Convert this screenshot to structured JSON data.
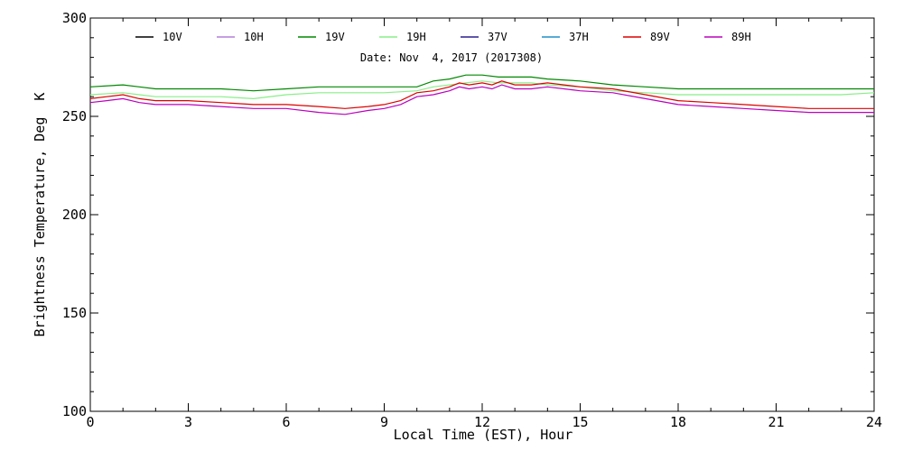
{
  "chart_data": {
    "type": "line",
    "title": "Date: Nov  4, 2017 (2017308)",
    "xlabel": "Local Time (EST), Hour",
    "ylabel": "Brightness Temperature, Deg  K",
    "xlim": [
      0,
      24
    ],
    "ylim": [
      100,
      300
    ],
    "xticks": [
      0,
      3,
      6,
      9,
      12,
      15,
      18,
      21,
      24
    ],
    "yticks": [
      100,
      150,
      200,
      250,
      300
    ],
    "legend_placement": "top",
    "grid": false,
    "series": [
      {
        "name": "10V",
        "color": "#000000",
        "x": [],
        "y": []
      },
      {
        "name": "10H",
        "color": "#b37fd9",
        "x": [],
        "y": []
      },
      {
        "name": "19V",
        "color": "#008800",
        "x": [
          0,
          1,
          1.5,
          2,
          3,
          4,
          5,
          6,
          7,
          8,
          9,
          10,
          10.5,
          11,
          11.5,
          12,
          12.5,
          13,
          13.5,
          14,
          15,
          16,
          17,
          18,
          19,
          20,
          21,
          22,
          23,
          24
        ],
        "y": [
          265,
          266,
          265,
          264,
          264,
          264,
          263,
          264,
          265,
          265,
          265,
          265,
          268,
          269,
          271,
          271,
          270,
          270,
          270,
          269,
          268,
          266,
          265,
          264,
          264,
          264,
          264,
          264,
          264,
          264
        ]
      },
      {
        "name": "19H",
        "color": "#88ee88",
        "x": [
          0,
          1,
          1.5,
          2,
          3,
          4,
          5,
          6,
          7,
          8,
          9,
          10,
          10.5,
          11,
          11.5,
          12,
          12.5,
          13,
          13.5,
          14,
          15,
          16,
          17,
          18,
          19,
          20,
          21,
          22,
          23,
          24
        ],
        "y": [
          261,
          262,
          261,
          260,
          260,
          260,
          259,
          261,
          262,
          262,
          262,
          263,
          265,
          266,
          267,
          268,
          267,
          267,
          267,
          266,
          265,
          263,
          262,
          261,
          261,
          261,
          261,
          261,
          261,
          262
        ]
      },
      {
        "name": "37V",
        "color": "#2a1f8f",
        "x": [],
        "y": []
      },
      {
        "name": "37H",
        "color": "#1f8fc8",
        "x": [],
        "y": []
      },
      {
        "name": "89V",
        "color": "#dd0000",
        "x": [
          0,
          0.5,
          1,
          1.5,
          2,
          3,
          4,
          5,
          6,
          7,
          7.8,
          8.5,
          9,
          9.5,
          10,
          10.5,
          11,
          11.3,
          11.6,
          12,
          12.3,
          12.6,
          13,
          13.5,
          14,
          15,
          16,
          17,
          18,
          19,
          20,
          21,
          22,
          23,
          24
        ],
        "y": [
          259,
          260,
          261,
          259,
          258,
          258,
          257,
          256,
          256,
          255,
          254,
          255,
          256,
          258,
          262,
          263,
          265,
          267,
          266,
          267,
          266,
          268,
          266,
          266,
          267,
          265,
          264,
          261,
          258,
          257,
          256,
          255,
          254,
          254,
          254
        ]
      },
      {
        "name": "89H",
        "color": "#bb00bb",
        "x": [
          0,
          0.5,
          1,
          1.5,
          2,
          3,
          4,
          5,
          6,
          7,
          7.8,
          8.5,
          9,
          9.5,
          10,
          10.5,
          11,
          11.3,
          11.6,
          12,
          12.3,
          12.6,
          13,
          13.5,
          14,
          15,
          16,
          17,
          18,
          19,
          20,
          21,
          22,
          23,
          24
        ],
        "y": [
          257,
          258,
          259,
          257,
          256,
          256,
          255,
          254,
          254,
          252,
          251,
          253,
          254,
          256,
          260,
          261,
          263,
          265,
          264,
          265,
          264,
          266,
          264,
          264,
          265,
          263,
          262,
          259,
          256,
          255,
          254,
          253,
          252,
          252,
          252
        ]
      }
    ]
  }
}
